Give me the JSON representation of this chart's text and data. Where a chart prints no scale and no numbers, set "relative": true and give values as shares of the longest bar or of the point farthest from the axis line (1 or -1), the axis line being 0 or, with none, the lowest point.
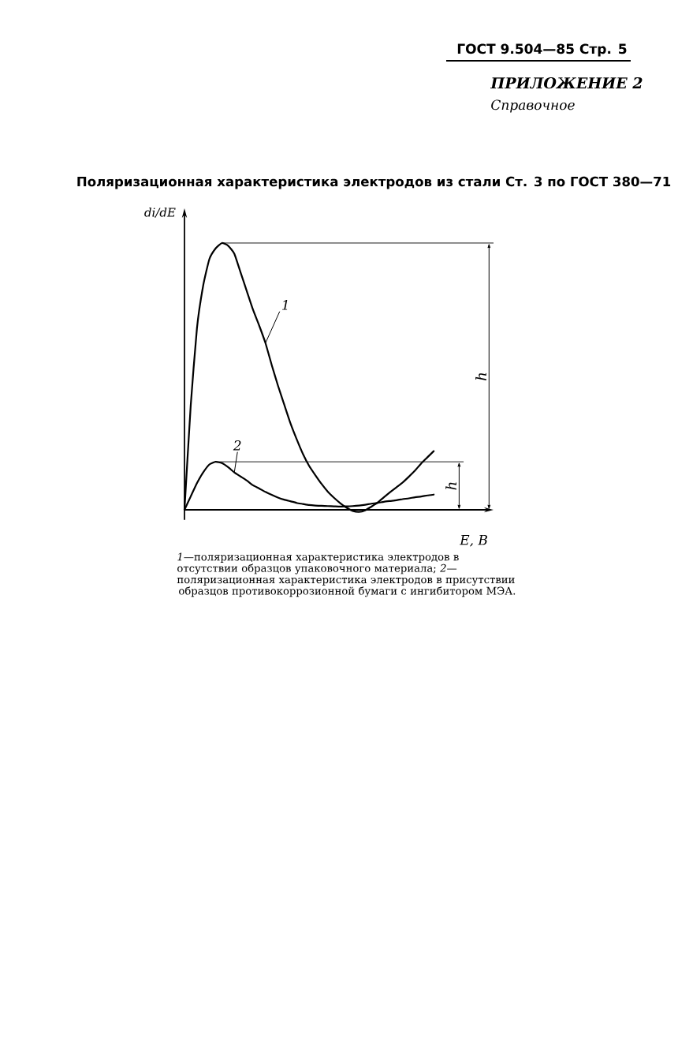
{
  "chart_data": {
    "type": "line",
    "title": "Поляризационная характеристика электродов из стали Ст. 3 по ГОСТ 380—71",
    "xlabel": "E, В",
    "ylabel": "di/dE",
    "relative": true,
    "categories": [
      null,
      null,
      null,
      null,
      null,
      null,
      null,
      null,
      null,
      null,
      null,
      null,
      null,
      null,
      null,
      null,
      null,
      null,
      null,
      null,
      null,
      null,
      null,
      null,
      null,
      null,
      null,
      null,
      null,
      null,
      null,
      null,
      null,
      null,
      null,
      null,
      null,
      null,
      null,
      null,
      null
    ],
    "series": [
      {
        "name": "1",
        "color": "#000000",
        "values": [
          0,
          0.39,
          0.68,
          0.84,
          0.94,
          0.98,
          1,
          0.99,
          0.96,
          0.89,
          0.82,
          0.75,
          0.69,
          0.625,
          0.543,
          0.466,
          0.395,
          0.325,
          0.265,
          0.21,
          0.165,
          0.13,
          0.097,
          0.068,
          0.045,
          0.025,
          0.008,
          -0.004,
          -0.008,
          -0.002,
          0.012,
          0.027,
          0.047,
          0.066,
          0.084,
          0.102,
          0.124,
          0.147,
          0.174,
          0.197,
          0.22
        ]
      },
      {
        "name": "2",
        "color": "#000000",
        "values": [
          0,
          0.05,
          0.1,
          0.14,
          0.17,
          0.18,
          0.175,
          0.16,
          0.14,
          0.125,
          0.11,
          0.092,
          0.08,
          0.067,
          0.056,
          0.046,
          0.038,
          0.032,
          0.026,
          0.022,
          0.018,
          0.016,
          0.015,
          0.014,
          0.013,
          0.012,
          0.013,
          0.014,
          0.016,
          0.019,
          0.023,
          0.026,
          0.03,
          0.033,
          0.036,
          0.04,
          0.043,
          0.047,
          0.05,
          0.054,
          0.057
        ]
      }
    ],
    "ref_lines": [
      {
        "axis": "y",
        "value": 1
      },
      {
        "axis": "y",
        "value": 0.18
      }
    ],
    "annotations": [
      "ГОСТ 9.504—85 Стр. 5",
      "ПРИЛОЖЕНИЕ 2",
      "Справочное",
      "h",
      "h",
      "*1*—поляризационная характеристика электродов в отсутствии образцов упаковочного материала; *2*—поляризационная характеристика электродов в присутствии образцов противокоррозионной бумаги с ингибитором МЭА."
    ]
  }
}
